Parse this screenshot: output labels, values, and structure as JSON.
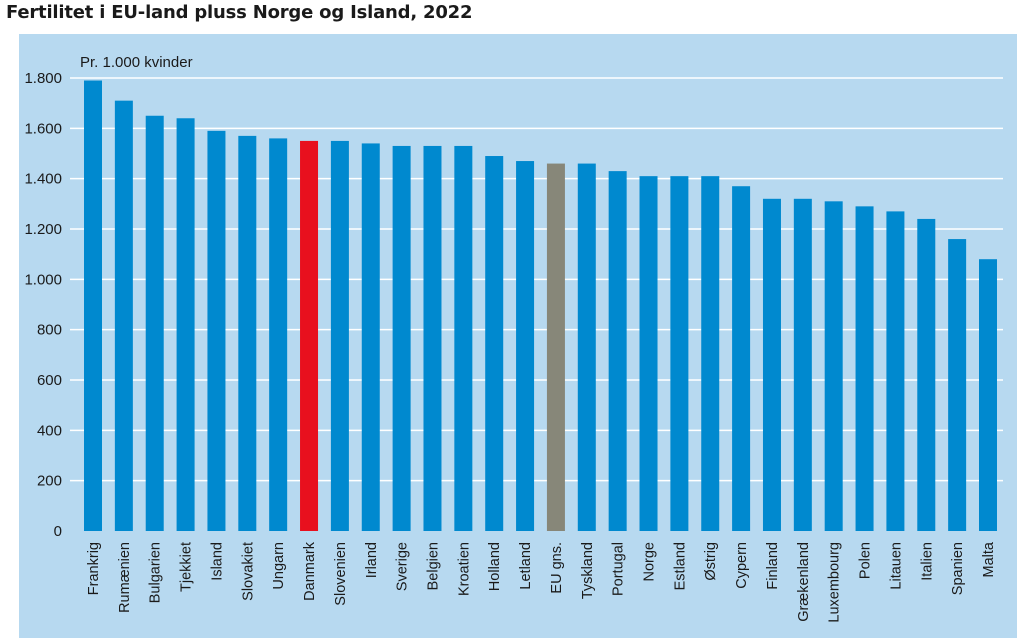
{
  "chart_data": {
    "type": "bar",
    "title": "Fertilitet i EU-land pluss Norge og Island, 2022",
    "unit_label": "Pr. 1.000 kvinder",
    "xlabel": "",
    "ylabel": "",
    "ylim": [
      0,
      1800
    ],
    "yticks": [
      0,
      200,
      400,
      600,
      800,
      1000,
      1200,
      1400,
      1600,
      1800
    ],
    "ytick_labels": [
      "0",
      "200",
      "400",
      "600",
      "800",
      "1.000",
      "1.200",
      "1.400",
      "1.600",
      "1.800"
    ],
    "grid": true,
    "categories": [
      "Frankrig",
      "Rumænien",
      "Bulgarien",
      "Tjekkiet",
      "Island",
      "Slovakiet",
      "Ungarn",
      "Danmark",
      "Slovenien",
      "Irland",
      "Sverige",
      "Belgien",
      "Kroatien",
      "Holland",
      "Letland",
      "EU gns.",
      "Tyskland",
      "Portugal",
      "Norge",
      "Estland",
      "Østrig",
      "Cypern",
      "Finland",
      "Grækenland",
      "Luxembourg",
      "Polen",
      "Litauen",
      "Italien",
      "Spanien",
      "Malta"
    ],
    "values": [
      1790,
      1710,
      1650,
      1640,
      1590,
      1570,
      1560,
      1550,
      1550,
      1540,
      1530,
      1530,
      1530,
      1490,
      1470,
      1460,
      1460,
      1430,
      1410,
      1410,
      1410,
      1370,
      1320,
      1320,
      1310,
      1290,
      1270,
      1240,
      1160,
      1080
    ],
    "colors": {
      "default": "#0089cf",
      "highlight": "#e8101e",
      "average": "#878779",
      "background": "#b7d9f0",
      "grid": "#ffffff"
    },
    "highlight_index": 7,
    "average_index": 15
  }
}
